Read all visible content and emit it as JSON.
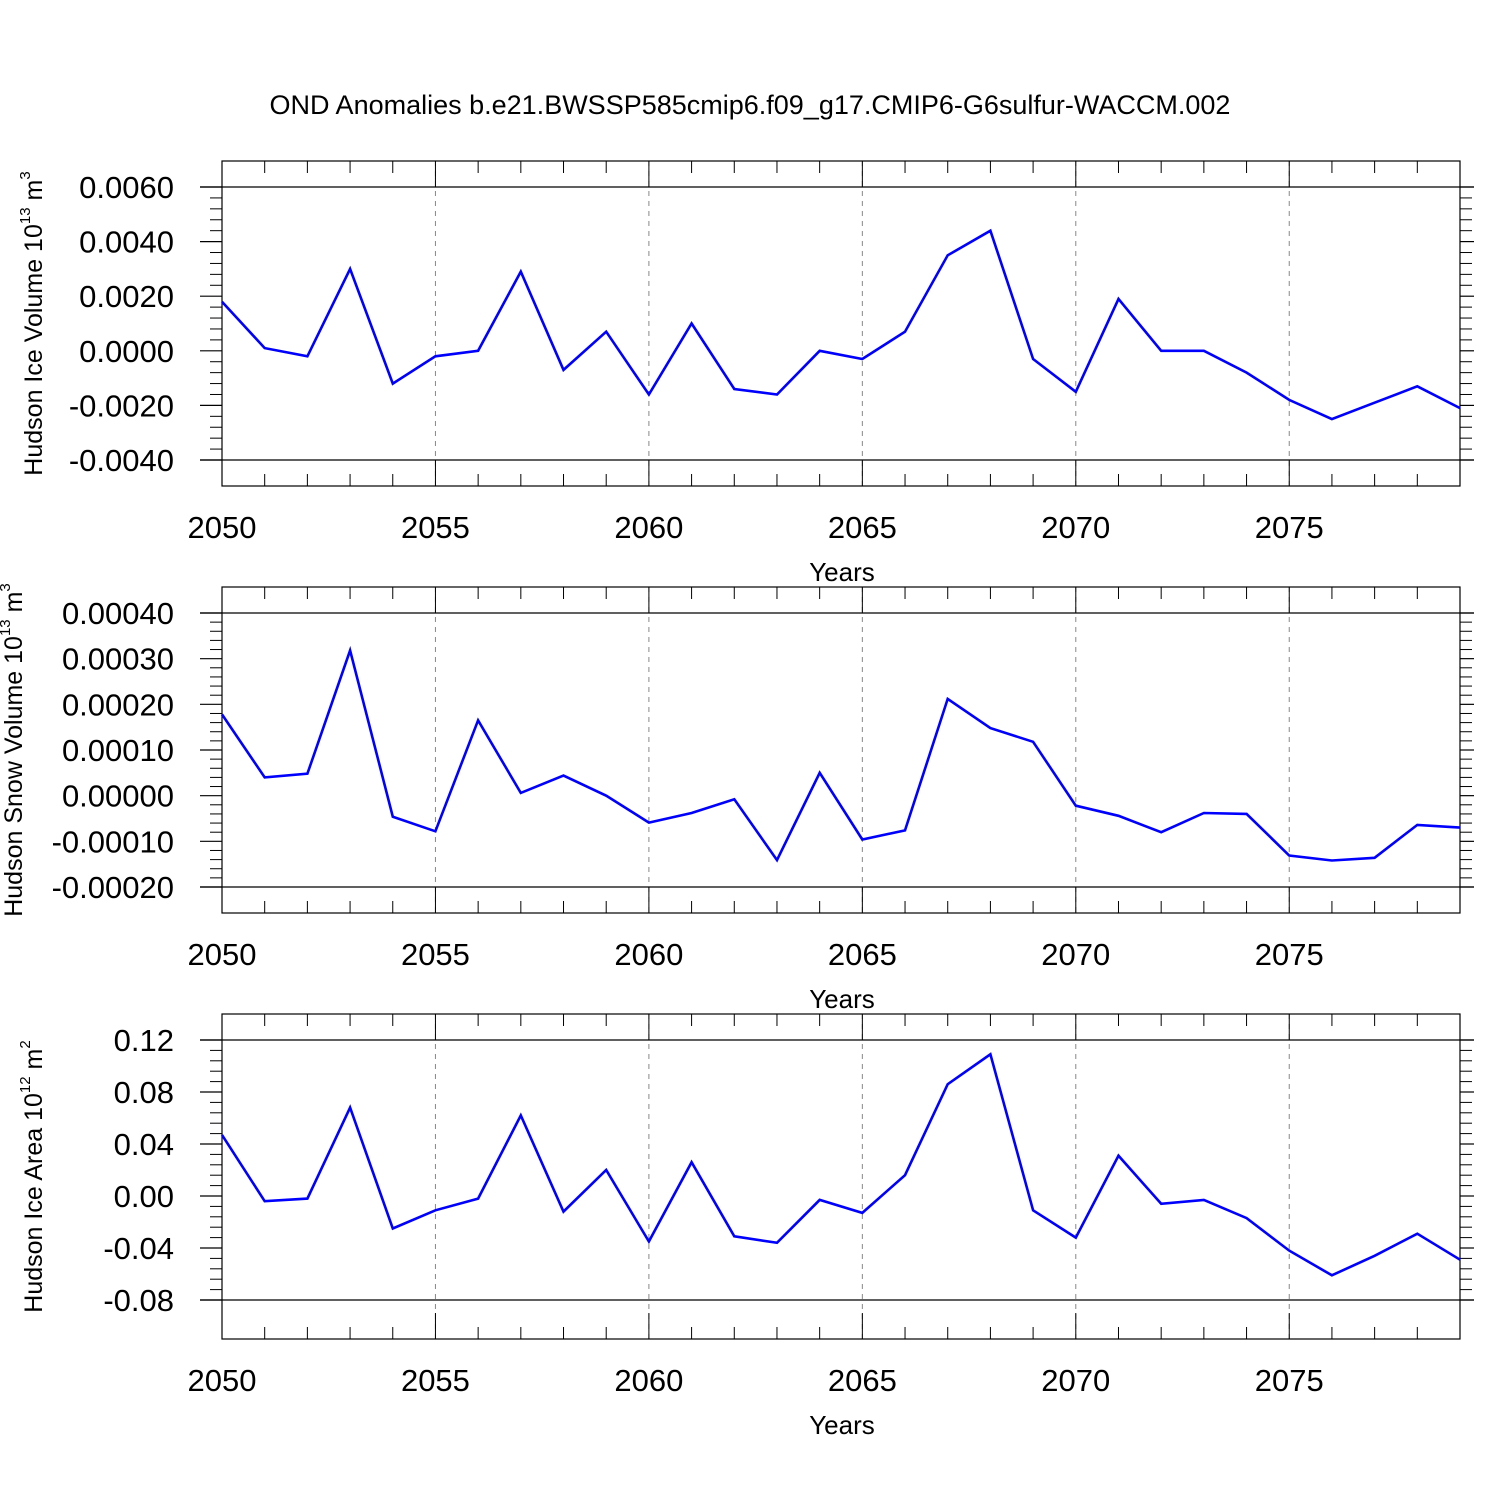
{
  "figure_title": "OND Anomalies b.e21.BWSSP585cmip6.f09_g17.CMIP6-G6sulfur-WACCM.002",
  "colors": {
    "series": "#0000ff",
    "axis": "#000000",
    "grid": "#888888"
  },
  "chart_data": [
    {
      "type": "line",
      "ylabel": {
        "text": "Hudson Ice Volume 10",
        "sup": "13",
        "unit": " m",
        "unit_sup": "3"
      },
      "xlabel": "Years",
      "xlim": [
        2050,
        2079
      ],
      "ylim": [
        -0.004,
        0.006
      ],
      "x_ticks": [
        2050,
        2055,
        2060,
        2065,
        2070,
        2075
      ],
      "x_tick_labels": [
        "2050",
        "2055",
        "2060",
        "2065",
        "2070",
        "2075"
      ],
      "y_ticks": [
        -0.004,
        -0.002,
        0.0,
        0.002,
        0.004,
        0.006
      ],
      "y_tick_labels": [
        "-0.0040",
        "-0.0020",
        "0.0000",
        "0.0020",
        "0.0040",
        "0.0060"
      ],
      "grid": "dashed vertical at major x ticks",
      "x": [
        2050,
        2051,
        2052,
        2053,
        2054,
        2055,
        2056,
        2057,
        2058,
        2059,
        2060,
        2061,
        2062,
        2063,
        2064,
        2065,
        2066,
        2067,
        2068,
        2069,
        2070,
        2071,
        2072,
        2073,
        2074,
        2075,
        2076,
        2077,
        2078,
        2079
      ],
      "y": [
        0.0018,
        0.0001,
        -0.0002,
        0.003,
        -0.0012,
        -0.0002,
        0.0,
        0.0029,
        -0.0007,
        0.0007,
        -0.0016,
        0.001,
        -0.0014,
        -0.0016,
        0.0,
        -0.0003,
        0.0007,
        0.0035,
        0.0044,
        -0.0003,
        -0.0015,
        0.0019,
        0.0,
        0.0,
        -0.0008,
        -0.0018,
        -0.0025,
        -0.0019,
        -0.0013,
        -0.0021
      ]
    },
    {
      "type": "line",
      "ylabel": {
        "text": "Hudson Snow Volume 10",
        "sup": "13",
        "unit": " m",
        "unit_sup": "3"
      },
      "xlabel": "Years",
      "xlim": [
        2050,
        2079
      ],
      "ylim": [
        -0.0002,
        0.0004
      ],
      "x_ticks": [
        2050,
        2055,
        2060,
        2065,
        2070,
        2075
      ],
      "x_tick_labels": [
        "2050",
        "2055",
        "2060",
        "2065",
        "2070",
        "2075"
      ],
      "y_ticks": [
        -0.0002,
        -0.0001,
        0.0,
        0.0001,
        0.0002,
        0.0003,
        0.0004
      ],
      "y_tick_labels": [
        "-0.00020",
        "-0.00010",
        "0.00000",
        "0.00010",
        "0.00020",
        "0.00030",
        "0.00040"
      ],
      "grid": "dashed vertical at major x ticks",
      "x": [
        2050,
        2051,
        2052,
        2053,
        2054,
        2055,
        2056,
        2057,
        2058,
        2059,
        2060,
        2061,
        2062,
        2063,
        2064,
        2065,
        2066,
        2067,
        2068,
        2069,
        2070,
        2071,
        2072,
        2073,
        2074,
        2075,
        2076,
        2077,
        2078,
        2079
      ],
      "y": [
        0.000178,
        4e-05,
        4.8e-05,
        0.000318,
        -4.6e-05,
        -7.8e-05,
        0.000165,
        6e-06,
        4.4e-05,
        0.0,
        -5.9e-05,
        -3.8e-05,
        -8e-06,
        -0.000141,
        5e-05,
        -9.6e-05,
        -7.6e-05,
        0.000212,
        0.000148,
        0.000118,
        -2.2e-05,
        -4.4e-05,
        -8e-05,
        -3.8e-05,
        -4e-05,
        -0.000131,
        -0.000142,
        -0.000136,
        -6.4e-05,
        -7e-05
      ]
    },
    {
      "type": "line",
      "ylabel": {
        "text": "Hudson Ice Area 10",
        "sup": "12",
        "unit": " m",
        "unit_sup": "2"
      },
      "xlabel": "Years",
      "xlim": [
        2050,
        2079
      ],
      "ylim": [
        -0.09,
        0.12
      ],
      "x_ticks": [
        2050,
        2055,
        2060,
        2065,
        2070,
        2075
      ],
      "x_tick_labels": [
        "2050",
        "2055",
        "2060",
        "2065",
        "2070",
        "2075"
      ],
      "y_ticks": [
        -0.08,
        -0.04,
        0.0,
        0.04,
        0.08,
        0.12
      ],
      "y_tick_labels": [
        "-0.08",
        "-0.04",
        "0.00",
        "0.04",
        "0.08",
        "0.12"
      ],
      "grid": "dashed vertical at major x ticks",
      "x": [
        2050,
        2051,
        2052,
        2053,
        2054,
        2055,
        2056,
        2057,
        2058,
        2059,
        2060,
        2061,
        2062,
        2063,
        2064,
        2065,
        2066,
        2067,
        2068,
        2069,
        2070,
        2071,
        2072,
        2073,
        2074,
        2075,
        2076,
        2077,
        2078,
        2079
      ],
      "y": [
        0.047,
        -0.004,
        -0.002,
        0.068,
        -0.025,
        -0.011,
        -0.002,
        0.062,
        -0.012,
        0.02,
        -0.035,
        0.026,
        -0.031,
        -0.036,
        -0.003,
        -0.013,
        0.016,
        0.086,
        0.109,
        -0.011,
        -0.032,
        0.031,
        -0.006,
        -0.003,
        -0.017,
        -0.042,
        -0.061,
        -0.046,
        -0.029,
        -0.049
      ]
    }
  ]
}
